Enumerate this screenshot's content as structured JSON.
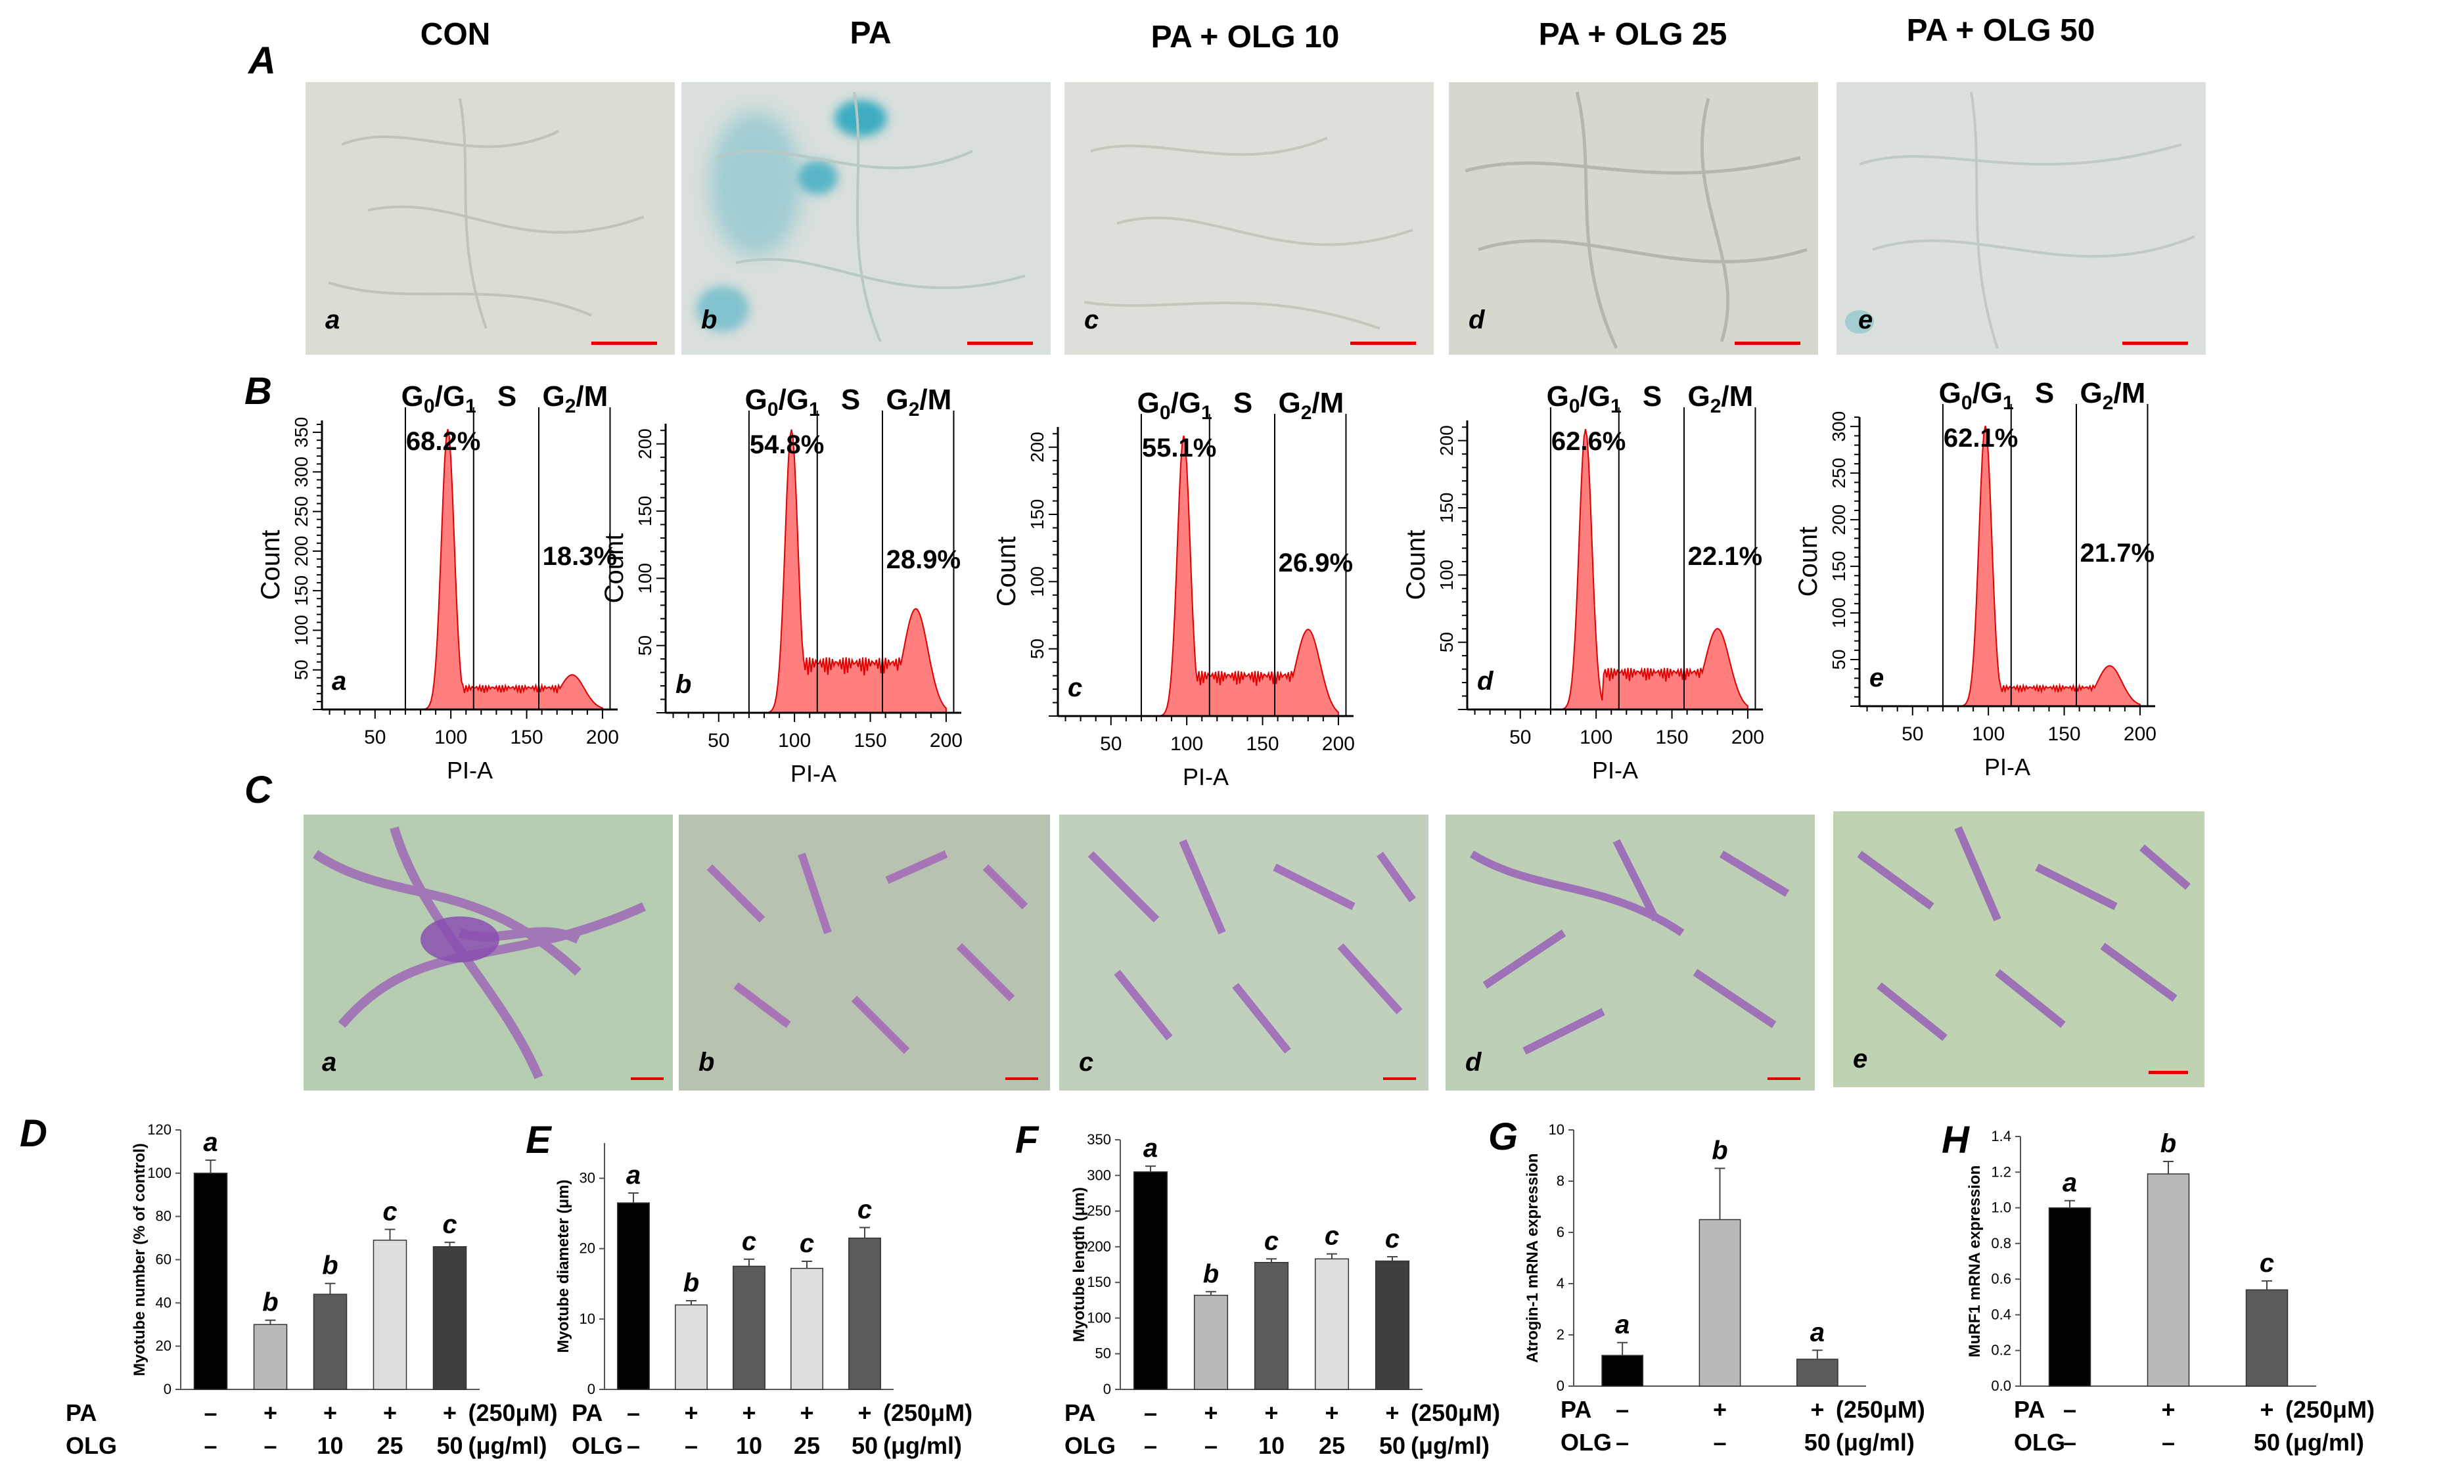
{
  "panel_letters": {
    "A": "A",
    "B": "B",
    "C": "C",
    "D": "D",
    "E": "E",
    "F": "F",
    "G": "G",
    "H": "H"
  },
  "conditions": [
    "CON",
    "PA",
    "PA + OLG 10",
    "PA + OLG 25",
    "PA + OLG 50"
  ],
  "sub_labels": [
    "a",
    "b",
    "c",
    "d",
    "e"
  ],
  "colors": {
    "micro_bg": "#dcdcd4",
    "micro_blue": "#5fb7c9",
    "micro_violet": "#9b62b8",
    "micro_green": "#b7cdb1",
    "hist_fill": "#ff7f7f",
    "hist_line": "#e00000",
    "scale_bar": "#e00000",
    "bar_black": "#000000",
    "bar_light": "#b9b9b9",
    "bar_dark": "#5b5b5b",
    "bar_pale": "#dedede",
    "bar_darker": "#3f3f3f"
  },
  "flow": {
    "phase_labels": [
      "G0/G1",
      "S",
      "G2/M"
    ],
    "ylabel": "Count",
    "xlabel": "PI-A",
    "xticks": [
      50,
      100,
      150,
      200
    ],
    "gates": [
      70,
      115,
      158
    ],
    "panels": [
      {
        "g1_pct": "68.2%",
        "g2m_pct": "18.3%",
        "yticks": [
          50,
          100,
          150,
          200,
          250,
          300,
          350
        ],
        "ymax": 365
      },
      {
        "g1_pct": "54.8%",
        "g2m_pct": "28.9%",
        "yticks": [
          50,
          100,
          150,
          200
        ],
        "ymax": 215
      },
      {
        "g1_pct": "55.1%",
        "g2m_pct": "26.9%",
        "yticks": [
          50,
          100,
          150,
          200
        ],
        "ymax": 215
      },
      {
        "g1_pct": "62.6%",
        "g2m_pct": "22.1%",
        "yticks": [
          50,
          100,
          150,
          200
        ],
        "ymax": 215
      },
      {
        "g1_pct": "62.1%",
        "g2m_pct": "21.7%",
        "yticks": [
          50,
          100,
          150,
          200,
          250,
          300
        ],
        "ymax": 310
      }
    ]
  },
  "chart_data": [
    {
      "id": "D",
      "type": "bar",
      "ylabel": "Myotube number (% of control)",
      "ylim": [
        0,
        120
      ],
      "yticks": [
        0,
        20,
        40,
        60,
        80,
        100,
        120
      ],
      "categories": [
        "CON",
        "PA",
        "PA + OLG 10",
        "PA + OLG 25",
        "PA + OLG 50"
      ],
      "values": [
        100,
        30,
        44,
        69,
        66
      ],
      "errors": [
        6,
        2,
        5,
        5,
        2
      ],
      "letters": [
        "a",
        "b",
        "b",
        "c",
        "c"
      ],
      "pa_row": [
        "–",
        "+",
        "+",
        "+",
        "+"
      ],
      "pa_label": "PA",
      "pa_unit": "(250μM)",
      "olg_row": [
        "–",
        "–",
        "10",
        "25",
        "50"
      ],
      "olg_label": "OLG",
      "olg_unit": "(μg/ml)"
    },
    {
      "id": "E",
      "type": "bar",
      "ylabel": "Myotube diameter (μm)",
      "ylim": [
        0,
        35
      ],
      "yticks": [
        0,
        10,
        20,
        30
      ],
      "categories": [
        "CON",
        "PA",
        "PA + OLG 10",
        "PA + OLG 25",
        "PA + OLG 50"
      ],
      "values": [
        26.5,
        12,
        17.5,
        17.2,
        21.5
      ],
      "errors": [
        1.4,
        0.6,
        1,
        1,
        1.5
      ],
      "letters": [
        "a",
        "b",
        "c",
        "c",
        "c"
      ],
      "pa_row": [
        "–",
        "+",
        "+",
        "+",
        "+"
      ],
      "pa_label": "PA",
      "pa_unit": "(250μM)",
      "olg_row": [
        "–",
        "–",
        "10",
        "25",
        "50"
      ],
      "olg_label": "OLG",
      "olg_unit": "(μg/ml)"
    },
    {
      "id": "F",
      "type": "bar",
      "ylabel": "Myotube length (μm)",
      "ylim": [
        0,
        350
      ],
      "yticks": [
        0,
        50,
        100,
        150,
        200,
        250,
        300,
        350
      ],
      "categories": [
        "CON",
        "PA",
        "PA + OLG 10",
        "PA + OLG 25",
        "PA + OLG 50"
      ],
      "values": [
        305,
        132,
        178,
        183,
        180
      ],
      "errors": [
        8,
        5,
        5,
        7,
        6
      ],
      "letters": [
        "a",
        "b",
        "c",
        "c",
        "c"
      ],
      "pa_row": [
        "–",
        "+",
        "+",
        "+",
        "+"
      ],
      "pa_label": "PA",
      "pa_unit": "(250μM)",
      "olg_row": [
        "–",
        "–",
        "10",
        "25",
        "50"
      ],
      "olg_label": "OLG",
      "olg_unit": "(μg/ml)"
    },
    {
      "id": "G",
      "type": "bar",
      "ylabel": "Atrogin-1 mRNA expression",
      "ylim": [
        0,
        10
      ],
      "yticks": [
        0,
        2,
        4,
        6,
        8,
        10
      ],
      "categories": [
        "CON",
        "PA",
        "PA + OLG 50"
      ],
      "values": [
        1.2,
        6.5,
        1.05
      ],
      "errors": [
        0.5,
        2.0,
        0.35
      ],
      "letters": [
        "a",
        "b",
        "a"
      ],
      "pa_row": [
        "–",
        "+",
        "+"
      ],
      "pa_label": "PA",
      "pa_unit": "(250μM)",
      "olg_row": [
        "–",
        "–",
        "50"
      ],
      "olg_label": "OLG",
      "olg_unit": "(μg/ml)"
    },
    {
      "id": "H",
      "type": "bar",
      "ylabel": "MuRF1 mRNA expression",
      "ylim": [
        0,
        1.4
      ],
      "yticks": [
        0,
        0.2,
        0.4,
        0.6,
        0.8,
        1.0,
        1.2,
        1.4
      ],
      "categories": [
        "CON",
        "PA",
        "PA + OLG 50"
      ],
      "values": [
        1.0,
        1.19,
        0.54
      ],
      "errors": [
        0.04,
        0.07,
        0.05
      ],
      "letters": [
        "a",
        "b",
        "c"
      ],
      "pa_row": [
        "–",
        "+",
        "+"
      ],
      "pa_label": "PA",
      "pa_unit": "(250μM)",
      "olg_row": [
        "–",
        "–",
        "50"
      ],
      "olg_label": "OLG",
      "olg_unit": "(μg/ml)"
    }
  ]
}
